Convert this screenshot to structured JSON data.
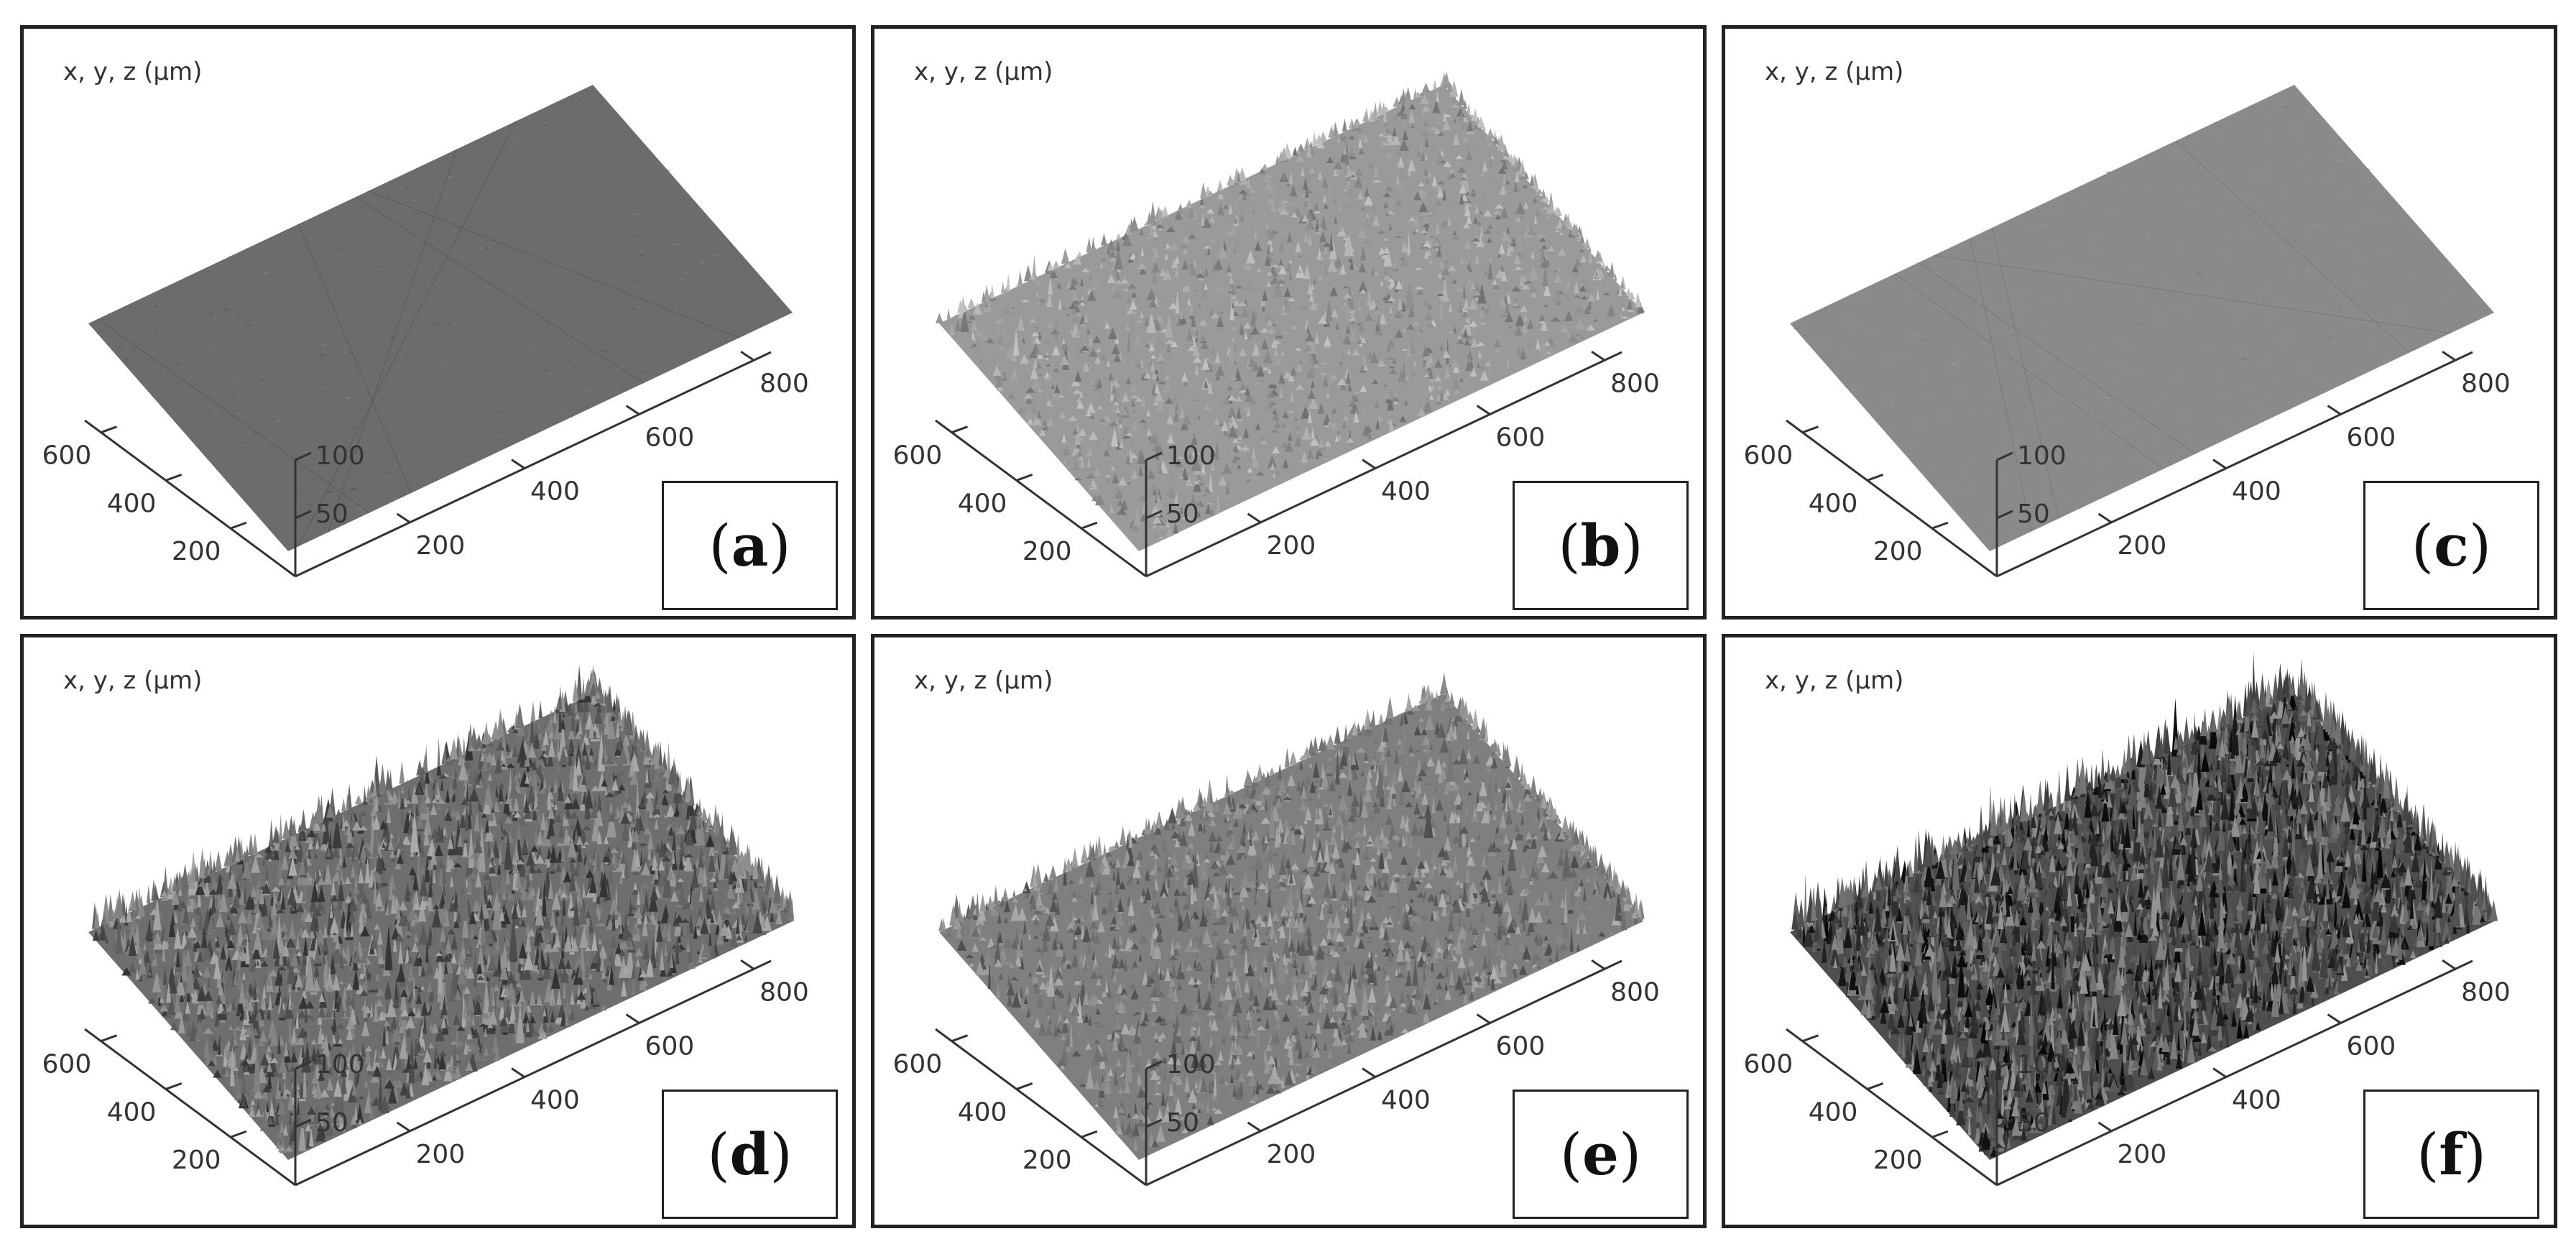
{
  "figure": {
    "panels": [
      {
        "id": "a",
        "label_open": "(",
        "label_letter": "a",
        "label_close": ")",
        "axis_title": "x, y, z (µm)",
        "x_ticks": [
          "200",
          "400",
          "600",
          "800"
        ],
        "y_ticks": [
          "200",
          "400",
          "600"
        ],
        "z_ticks": [
          "50",
          "100"
        ],
        "surface": "smooth",
        "roughness": 0.05,
        "tone": "#6c6c6c"
      },
      {
        "id": "b",
        "label_open": "(",
        "label_letter": "b",
        "label_close": ")",
        "axis_title": "x, y, z (µm)",
        "x_ticks": [
          "200",
          "400",
          "600",
          "800"
        ],
        "y_ticks": [
          "200",
          "400",
          "600"
        ],
        "z_ticks": [
          "50",
          "100"
        ],
        "surface": "moderately rough",
        "roughness": 0.45,
        "tone": "#9a9a9a"
      },
      {
        "id": "c",
        "label_open": "(",
        "label_letter": "c",
        "label_close": ")",
        "axis_title": "x, y, z (µm)",
        "x_ticks": [
          "200",
          "400",
          "600",
          "800"
        ],
        "y_ticks": [
          "200",
          "400",
          "600"
        ],
        "z_ticks": [
          "50",
          "100"
        ],
        "surface": "smooth",
        "roughness": 0.04,
        "tone": "#8a8a8a"
      },
      {
        "id": "d",
        "label_open": "(",
        "label_letter": "d",
        "label_close": ")",
        "axis_title": "x, y, z (µm)",
        "x_ticks": [
          "200",
          "400",
          "600",
          "800"
        ],
        "y_ticks": [
          "200",
          "400",
          "600"
        ],
        "z_ticks": [
          "50",
          "100"
        ],
        "surface": "rough",
        "roughness": 0.8,
        "tone": "#6e6e6e"
      },
      {
        "id": "e",
        "label_open": "(",
        "label_letter": "e",
        "label_close": ")",
        "axis_title": "x, y, z (µm)",
        "x_ticks": [
          "200",
          "400",
          "600",
          "800"
        ],
        "y_ticks": [
          "200",
          "400",
          "600"
        ],
        "z_ticks": [
          "50",
          "100"
        ],
        "surface": "rough",
        "roughness": 0.6,
        "tone": "#7f7f7f"
      },
      {
        "id": "f",
        "label_open": "(",
        "label_letter": "f",
        "label_close": ")",
        "axis_title": "x, y, z (µm)",
        "x_ticks": [
          "200",
          "400",
          "600",
          "800"
        ],
        "y_ticks": [
          "200",
          "400",
          "600"
        ],
        "z_ticks": [
          "50",
          "100"
        ],
        "surface": "very rough",
        "roughness": 1.0,
        "tone": "#4e4e4e"
      }
    ]
  }
}
